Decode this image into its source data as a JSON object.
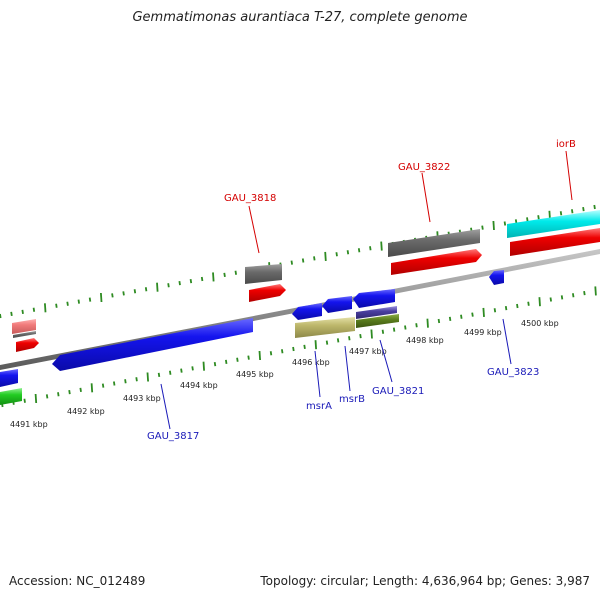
{
  "title": "Gemmatimonas aurantiaca T-27, complete genome",
  "footer": {
    "accession": "Accession: NC_012489",
    "summary": "Topology: circular; Length: 4,636,964 bp; Genes: 3,987"
  },
  "colors": {
    "tick_green": "#2e8b22",
    "label_red": "#d40000",
    "label_blue": "#1a1ab8",
    "backbone": "#8c8c8c"
  },
  "scale_labels": [
    "4491 kbp",
    "4492 kbp",
    "4493 kbp",
    "4494 kbp",
    "4495 kbp",
    "4496 kbp",
    "4497 kbp",
    "4498 kbp",
    "4499 kbp",
    "4500 kbp"
  ],
  "gene_labels": {
    "GAU_3818": "GAU_3818",
    "GAU_3822": "GAU_3822",
    "iorB": "iorB",
    "GAU_3817": "GAU_3817",
    "msrA": "msrA",
    "msrB": "msrB",
    "GAU_3821": "GAU_3821",
    "GAU_3823": "GAU_3823"
  }
}
